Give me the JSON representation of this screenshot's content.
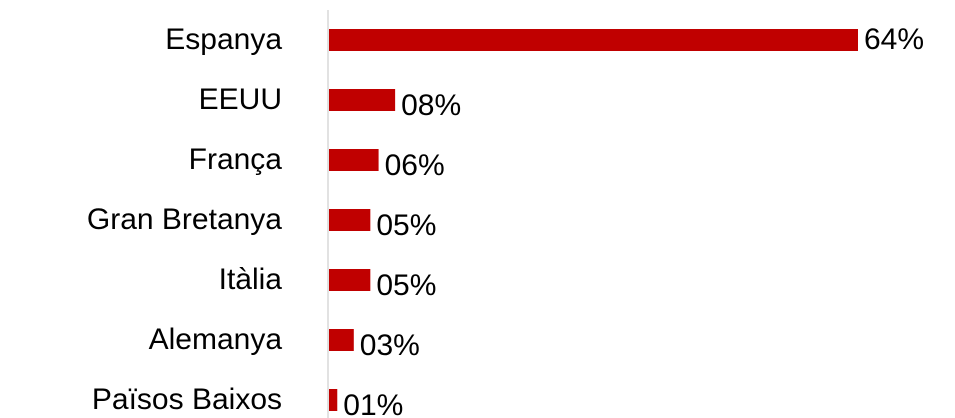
{
  "chart_data": {
    "type": "hbar",
    "categories": [
      "Espanya",
      "EEUU",
      "França",
      "Gran Bretanya",
      "Itàlia",
      "Alemanya",
      "Països Baixos"
    ],
    "values": [
      64,
      8,
      6,
      5,
      5,
      3,
      1
    ],
    "value_labels": [
      "64%",
      "08%",
      "06%",
      "05%",
      "05%",
      "03%",
      "01%"
    ],
    "color": "#c00000",
    "xlim": [
      0,
      64
    ]
  }
}
